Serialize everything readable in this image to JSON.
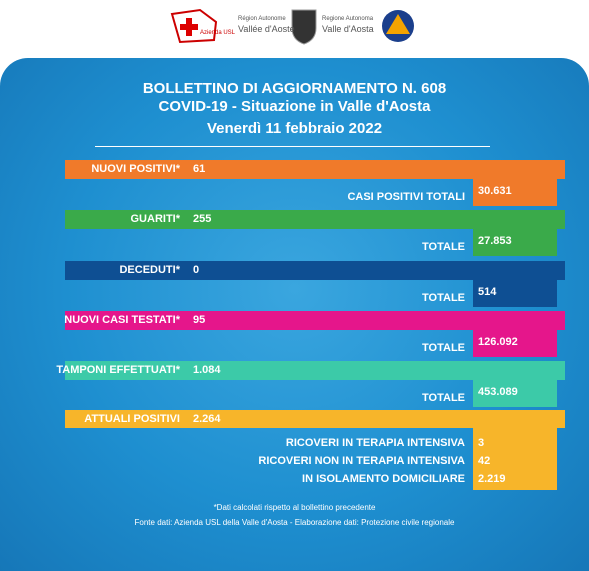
{
  "logos": {
    "usl": "Azienda USL",
    "fr_1": "Région Autonome",
    "fr_2": "Vallée d'Aoste",
    "it_1": "Regione Autonoma",
    "it_2": "Valle d'Aosta"
  },
  "header": {
    "title": [
      "BOLLETTINO DI AGGIORNAMENTO N. 608",
      "COVID-19 - Situazione in Valle d'Aosta",
      "Venerdì 11 febbraio 2022"
    ]
  },
  "rows": [
    {
      "label": "NUOVI POSITIVI*",
      "value": "61",
      "total_label": "CASI POSITIVI TOTALI",
      "total": "30.631"
    },
    {
      "label": "GUARITI*",
      "value": "255",
      "total_label": "TOTALE",
      "total": "27.853"
    },
    {
      "label": "DECEDUTI*",
      "value": "0",
      "total_label": "TOTALE",
      "total": "514"
    },
    {
      "label": "NUOVI CASI TESTATI*",
      "value": "95",
      "total_label": "TOTALE",
      "total": "126.092"
    },
    {
      "label": "TAMPONI EFFETTUATI*",
      "value": "1.084",
      "total_label": "TOTALE",
      "total": "453.089"
    }
  ],
  "last": {
    "label": "ATTUALI POSITIVI",
    "value": "2.264",
    "items": [
      {
        "label": "RICOVERI IN TERAPIA INTENSIVA",
        "value": "3"
      },
      {
        "label": "RICOVERI NON IN TERAPIA INTENSIVA",
        "value": "42"
      },
      {
        "label": "IN ISOLAMENTO DOMICILIARE",
        "value": "2.219"
      }
    ]
  },
  "footnote": "*Dati calcolati rispetto al bollettino precedente",
  "source": "Fonte dati: Azienda USL della Valle d'Aosta - Elaborazione dati: Protezione civile regionale"
}
